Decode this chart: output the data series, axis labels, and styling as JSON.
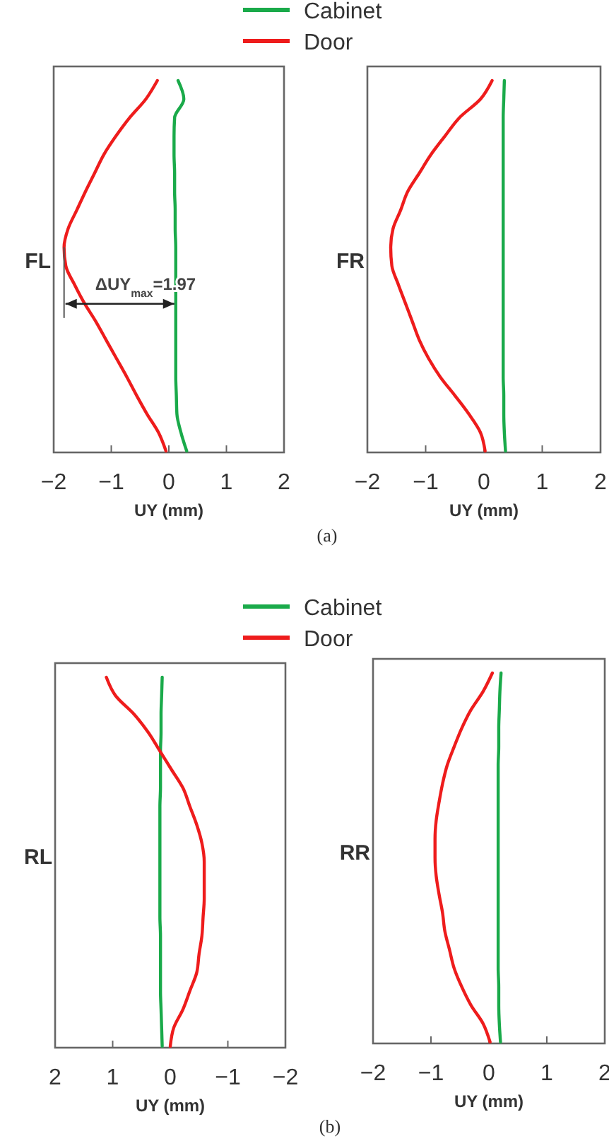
{
  "chart_data": [
    {
      "type": "line",
      "orientation": "horizontal",
      "ylabel": "FL",
      "xlabel": "UY (mm)",
      "categories": [
        null,
        null,
        null,
        null,
        null,
        null,
        null,
        null,
        null,
        null,
        null,
        null,
        null,
        null,
        null,
        null,
        null,
        null,
        null,
        null,
        null
      ],
      "xlim": [
        -2,
        2
      ],
      "xticks": [
        -2,
        -1,
        0,
        1,
        2
      ],
      "tick_labels": "x",
      "grid": false,
      "marker": "none",
      "line_style": "solid",
      "legend": "top",
      "annotations": [
        "ΔUY$_{max}$=1.97"
      ],
      "series": [
        {
          "name": "Cabinet",
          "color": "#1aaa4a",
          "values": [
            0.16,
            0.26,
            0.1,
            0.09,
            0.09,
            0.1,
            0.1,
            0.11,
            0.11,
            0.12,
            0.12,
            0.12,
            0.12,
            0.12,
            0.12,
            0.12,
            0.12,
            0.13,
            0.14,
            0.21,
            0.31
          ]
        },
        {
          "name": "Door",
          "color": "#ee1c1c",
          "values": [
            -0.2,
            -0.4,
            -0.68,
            -0.92,
            -1.13,
            -1.29,
            -1.45,
            -1.6,
            -1.75,
            -1.82,
            -1.79,
            -1.64,
            -1.47,
            -1.27,
            -1.09,
            -0.91,
            -0.73,
            -0.56,
            -0.38,
            -0.18,
            -0.05
          ]
        }
      ]
    },
    {
      "type": "line",
      "orientation": "horizontal",
      "ylabel": "FR",
      "xlabel": "UY (mm)",
      "categories": [
        null,
        null,
        null,
        null,
        null,
        null,
        null,
        null,
        null,
        null,
        null,
        null,
        null,
        null,
        null,
        null,
        null,
        null,
        null,
        null,
        null
      ],
      "xlim": [
        -2,
        2
      ],
      "xticks": [
        -2,
        -1,
        0,
        1,
        2
      ],
      "tick_labels": "x",
      "grid": false,
      "marker": "none",
      "line_style": "solid",
      "annotations": [
        "(a)"
      ],
      "series": [
        {
          "color": "#1aaa4a",
          "values": [
            0.35,
            0.34,
            0.33,
            0.33,
            0.33,
            0.33,
            0.33,
            0.33,
            0.33,
            0.33,
            0.33,
            0.33,
            0.33,
            0.33,
            0.33,
            0.33,
            0.33,
            0.34,
            0.34,
            0.35,
            0.37
          ]
        },
        {
          "color": "#ee1c1c",
          "values": [
            0.14,
            -0.06,
            -0.42,
            -0.67,
            -0.91,
            -1.11,
            -1.31,
            -1.43,
            -1.56,
            -1.6,
            -1.58,
            -1.47,
            -1.35,
            -1.23,
            -1.11,
            -0.95,
            -0.75,
            -0.5,
            -0.26,
            -0.06,
            0.02
          ]
        }
      ]
    },
    {
      "type": "line",
      "orientation": "horizontal",
      "ylabel": "RL",
      "xlabel": "UY (mm)",
      "categories": [
        null,
        null,
        null,
        null,
        null,
        null,
        null,
        null,
        null,
        null,
        null,
        null,
        null,
        null,
        null,
        null,
        null,
        null,
        null,
        null,
        null
      ],
      "xlim": [
        2,
        -2
      ],
      "xticks": [
        2,
        1,
        0,
        -1,
        -2
      ],
      "tick_labels": "x",
      "grid": false,
      "marker": "none",
      "line_style": "solid",
      "legend": "top",
      "series": [
        {
          "name": "Cabinet",
          "color": "#1aaa4a",
          "values": [
            0.14,
            0.15,
            0.16,
            0.16,
            0.17,
            0.17,
            0.17,
            0.18,
            0.18,
            0.18,
            0.18,
            0.18,
            0.18,
            0.18,
            0.17,
            0.17,
            0.17,
            0.17,
            0.16,
            0.15,
            0.14
          ]
        },
        {
          "name": "Door",
          "color": "#ee1c1c",
          "values": [
            1.11,
            0.95,
            0.63,
            0.38,
            0.18,
            -0.02,
            -0.22,
            -0.34,
            -0.46,
            -0.55,
            -0.59,
            -0.59,
            -0.59,
            -0.57,
            -0.55,
            -0.5,
            -0.46,
            -0.34,
            -0.22,
            -0.06,
            0.0
          ]
        }
      ]
    },
    {
      "type": "line",
      "orientation": "horizontal",
      "ylabel": "RR",
      "xlabel": "UY (mm)",
      "categories": [
        null,
        null,
        null,
        null,
        null,
        null,
        null,
        null,
        null,
        null,
        null,
        null,
        null,
        null,
        null,
        null,
        null,
        null,
        null,
        null,
        null
      ],
      "xlim": [
        -2,
        2
      ],
      "xticks": [
        -2,
        -1,
        0,
        1,
        2
      ],
      "tick_labels": "x",
      "grid": false,
      "marker": "none",
      "line_style": "solid",
      "annotations": [
        "(b)"
      ],
      "series": [
        {
          "color": "#1aaa4a",
          "values": [
            0.21,
            0.19,
            0.18,
            0.17,
            0.17,
            0.16,
            0.16,
            0.16,
            0.16,
            0.16,
            0.16,
            0.16,
            0.16,
            0.16,
            0.16,
            0.16,
            0.16,
            0.17,
            0.17,
            0.18,
            0.2
          ]
        },
        {
          "color": "#ee1c1c",
          "values": [
            0.06,
            -0.1,
            -0.31,
            -0.47,
            -0.6,
            -0.72,
            -0.8,
            -0.86,
            -0.91,
            -0.93,
            -0.93,
            -0.91,
            -0.86,
            -0.8,
            -0.76,
            -0.68,
            -0.6,
            -0.47,
            -0.31,
            -0.1,
            0.02
          ]
        }
      ]
    }
  ]
}
